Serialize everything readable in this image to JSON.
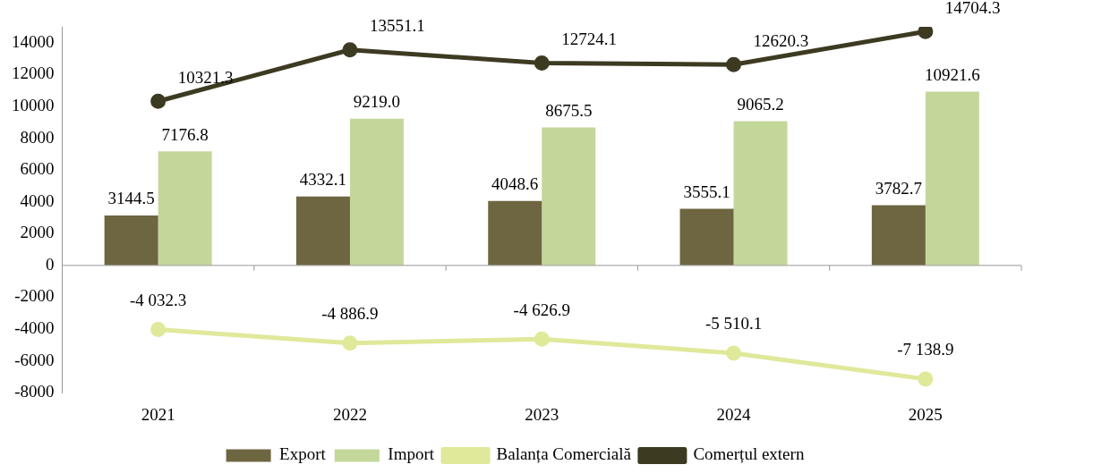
{
  "chart_data": {
    "type": "bar",
    "categories": [
      "2021",
      "2022",
      "2023",
      "2024",
      "2025"
    ],
    "series": [
      {
        "name": "Export",
        "color": "#6e6641",
        "values": [
          3144.5,
          4332.1,
          4048.6,
          3555.1,
          3782.7
        ],
        "value_labels": [
          "3144.5",
          "4332.1",
          "4048.6",
          "3555.1",
          "3782.7"
        ]
      },
      {
        "name": "Import",
        "color": "#c4d79b",
        "values": [
          7176.8,
          9219.0,
          8675.5,
          9065.2,
          10921.6
        ],
        "value_labels": [
          "7176.8",
          "9219.0",
          "8675.5",
          "9065.2",
          "10921.6"
        ]
      },
      {
        "name": "Balanța Comercială",
        "type": "line",
        "color": "#e0e89a",
        "values": [
          -4032.3,
          -4886.9,
          -4626.9,
          -5510.1,
          -7138.9
        ],
        "value_labels": [
          "-4 032.3",
          "-4 886.9",
          "-4 626.9",
          "-5 510.1",
          "-7 138.9"
        ]
      },
      {
        "name": "Comerțul extern",
        "type": "line",
        "color": "#3d3a22",
        "values": [
          10321.3,
          13551.1,
          12724.1,
          12620.3,
          14704.3
        ],
        "value_labels": [
          "10321.3",
          "13551.1",
          "12724.1",
          "12620.3",
          "14704.3"
        ]
      }
    ],
    "ylim": [
      -8000,
      15000
    ],
    "yticks": [
      -8000,
      -6000,
      -4000,
      -2000,
      0,
      2000,
      4000,
      6000,
      8000,
      10000,
      12000,
      14000
    ],
    "legend": "bottom",
    "marker": "circle"
  }
}
